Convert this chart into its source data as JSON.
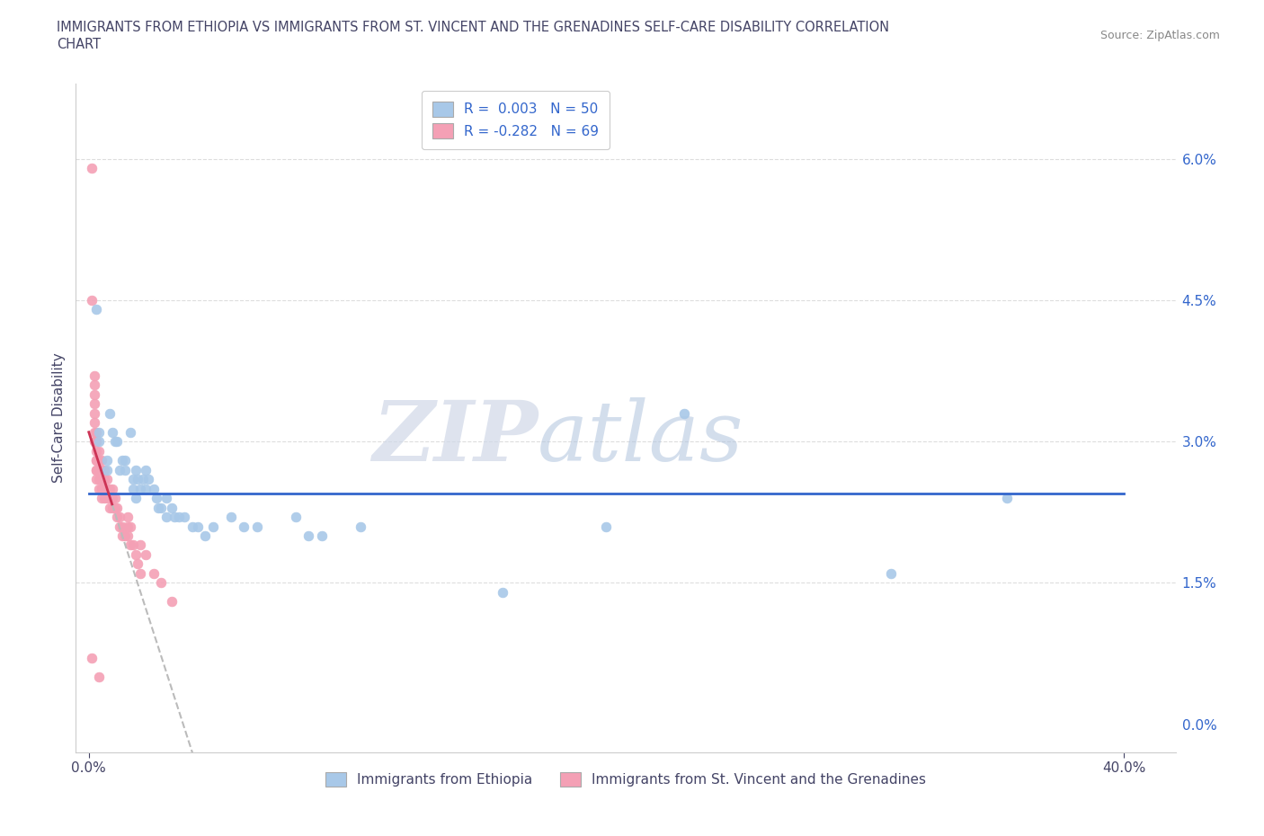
{
  "title_line1": "IMMIGRANTS FROM ETHIOPIA VS IMMIGRANTS FROM ST. VINCENT AND THE GRENADINES SELF-CARE DISABILITY CORRELATION",
  "title_line2": "CHART",
  "source_text": "Source: ZipAtlas.com",
  "ylabel": "Self-Care Disability",
  "xlabel_blue": "Immigrants from Ethiopia",
  "xlabel_pink": "Immigrants from St. Vincent and the Grenadines",
  "xlim": [
    0.0,
    0.4
  ],
  "ylim": [
    0.0,
    0.065
  ],
  "yticks": [
    0.0,
    0.015,
    0.03,
    0.045,
    0.06
  ],
  "ytick_labels": [
    "0.0%",
    "1.5%",
    "3.0%",
    "4.5%",
    "6.0%"
  ],
  "xticks": [
    0.0,
    0.4
  ],
  "xtick_labels": [
    "0.0%",
    "40.0%"
  ],
  "R_blue": 0.003,
  "N_blue": 50,
  "R_pink": -0.282,
  "N_pink": 69,
  "color_blue": "#a8c8e8",
  "color_pink": "#f4a0b5",
  "trendline_blue_color": "#3366cc",
  "trendline_pink_color": "#cc3355",
  "watermark_zip": "ZIP",
  "watermark_atlas": "atlas",
  "title_color": "#444466",
  "axis_color": "#444466",
  "blue_scatter": [
    [
      0.003,
      0.044
    ],
    [
      0.004,
      0.031
    ],
    [
      0.004,
      0.03
    ],
    [
      0.007,
      0.028
    ],
    [
      0.007,
      0.027
    ],
    [
      0.008,
      0.033
    ],
    [
      0.009,
      0.031
    ],
    [
      0.01,
      0.03
    ],
    [
      0.011,
      0.03
    ],
    [
      0.012,
      0.027
    ],
    [
      0.013,
      0.028
    ],
    [
      0.014,
      0.028
    ],
    [
      0.014,
      0.027
    ],
    [
      0.016,
      0.031
    ],
    [
      0.017,
      0.026
    ],
    [
      0.017,
      0.025
    ],
    [
      0.018,
      0.027
    ],
    [
      0.018,
      0.024
    ],
    [
      0.019,
      0.026
    ],
    [
      0.02,
      0.025
    ],
    [
      0.021,
      0.026
    ],
    [
      0.022,
      0.027
    ],
    [
      0.022,
      0.025
    ],
    [
      0.023,
      0.026
    ],
    [
      0.025,
      0.025
    ],
    [
      0.026,
      0.024
    ],
    [
      0.027,
      0.023
    ],
    [
      0.028,
      0.023
    ],
    [
      0.03,
      0.024
    ],
    [
      0.03,
      0.022
    ],
    [
      0.032,
      0.023
    ],
    [
      0.033,
      0.022
    ],
    [
      0.035,
      0.022
    ],
    [
      0.037,
      0.022
    ],
    [
      0.04,
      0.021
    ],
    [
      0.042,
      0.021
    ],
    [
      0.045,
      0.02
    ],
    [
      0.048,
      0.021
    ],
    [
      0.055,
      0.022
    ],
    [
      0.06,
      0.021
    ],
    [
      0.065,
      0.021
    ],
    [
      0.08,
      0.022
    ],
    [
      0.085,
      0.02
    ],
    [
      0.09,
      0.02
    ],
    [
      0.105,
      0.021
    ],
    [
      0.16,
      0.014
    ],
    [
      0.2,
      0.021
    ],
    [
      0.23,
      0.033
    ],
    [
      0.31,
      0.016
    ],
    [
      0.355,
      0.024
    ]
  ],
  "pink_scatter": [
    [
      0.001,
      0.059
    ],
    [
      0.001,
      0.045
    ],
    [
      0.002,
      0.037
    ],
    [
      0.002,
      0.036
    ],
    [
      0.002,
      0.035
    ],
    [
      0.002,
      0.034
    ],
    [
      0.002,
      0.033
    ],
    [
      0.002,
      0.032
    ],
    [
      0.002,
      0.031
    ],
    [
      0.002,
      0.03
    ],
    [
      0.003,
      0.031
    ],
    [
      0.003,
      0.03
    ],
    [
      0.003,
      0.03
    ],
    [
      0.003,
      0.029
    ],
    [
      0.003,
      0.028
    ],
    [
      0.003,
      0.028
    ],
    [
      0.003,
      0.027
    ],
    [
      0.003,
      0.027
    ],
    [
      0.003,
      0.026
    ],
    [
      0.004,
      0.029
    ],
    [
      0.004,
      0.028
    ],
    [
      0.004,
      0.027
    ],
    [
      0.004,
      0.027
    ],
    [
      0.004,
      0.026
    ],
    [
      0.004,
      0.025
    ],
    [
      0.005,
      0.028
    ],
    [
      0.005,
      0.027
    ],
    [
      0.005,
      0.026
    ],
    [
      0.005,
      0.025
    ],
    [
      0.005,
      0.025
    ],
    [
      0.005,
      0.024
    ],
    [
      0.006,
      0.027
    ],
    [
      0.006,
      0.026
    ],
    [
      0.006,
      0.025
    ],
    [
      0.006,
      0.024
    ],
    [
      0.007,
      0.026
    ],
    [
      0.007,
      0.025
    ],
    [
      0.007,
      0.024
    ],
    [
      0.008,
      0.025
    ],
    [
      0.008,
      0.024
    ],
    [
      0.008,
      0.023
    ],
    [
      0.009,
      0.025
    ],
    [
      0.009,
      0.024
    ],
    [
      0.009,
      0.023
    ],
    [
      0.01,
      0.024
    ],
    [
      0.01,
      0.023
    ],
    [
      0.011,
      0.023
    ],
    [
      0.011,
      0.022
    ],
    [
      0.012,
      0.022
    ],
    [
      0.012,
      0.021
    ],
    [
      0.013,
      0.021
    ],
    [
      0.013,
      0.02
    ],
    [
      0.014,
      0.02
    ],
    [
      0.015,
      0.022
    ],
    [
      0.015,
      0.021
    ],
    [
      0.015,
      0.02
    ],
    [
      0.016,
      0.021
    ],
    [
      0.016,
      0.019
    ],
    [
      0.017,
      0.019
    ],
    [
      0.018,
      0.018
    ],
    [
      0.019,
      0.017
    ],
    [
      0.02,
      0.016
    ],
    [
      0.02,
      0.019
    ],
    [
      0.022,
      0.018
    ],
    [
      0.025,
      0.016
    ],
    [
      0.028,
      0.015
    ],
    [
      0.032,
      0.013
    ],
    [
      0.001,
      0.007
    ],
    [
      0.004,
      0.005
    ]
  ]
}
